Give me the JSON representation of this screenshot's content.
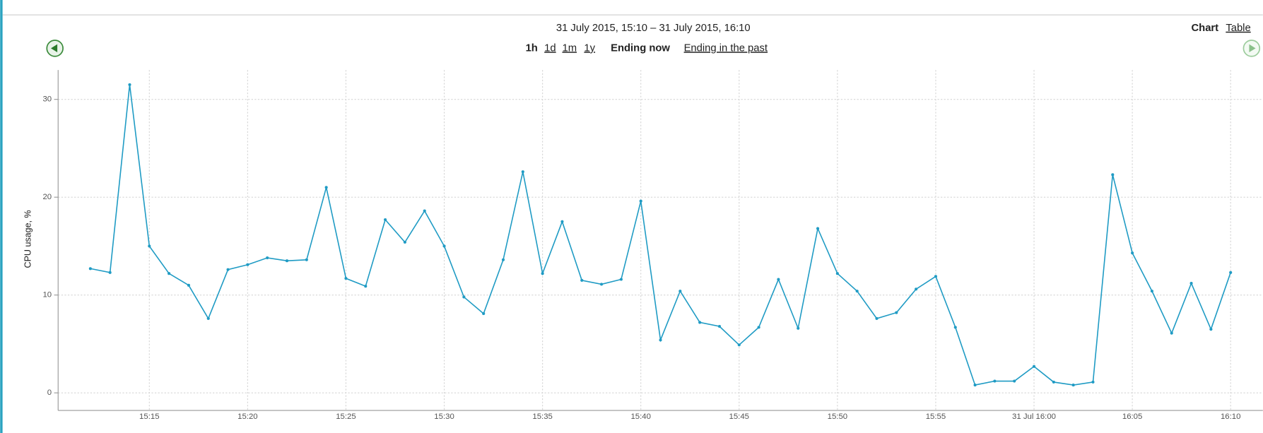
{
  "header": {
    "range": "31 July 2015, 15:10 – 31 July 2015, 16:10",
    "periods": [
      "1h",
      "1d",
      "1m",
      "1y"
    ],
    "ending_now": "Ending now",
    "ending_past": "Ending in the past",
    "views": [
      "Chart",
      "Table"
    ]
  },
  "chart_data": {
    "type": "line",
    "y_label": "CPU usage, %",
    "color": "#1f9bc4",
    "grid": true,
    "x": [
      "15:12",
      "15:13",
      "15:14",
      "15:15",
      "15:16",
      "15:17",
      "15:18",
      "15:19",
      "15:20",
      "15:21",
      "15:22",
      "15:23",
      "15:24",
      "15:25",
      "15:26",
      "15:27",
      "15:28",
      "15:29",
      "15:30",
      "15:31",
      "15:32",
      "15:33",
      "15:34",
      "15:35",
      "15:36",
      "15:37",
      "15:38",
      "15:39",
      "15:40",
      "15:41",
      "15:42",
      "15:43",
      "15:44",
      "15:45",
      "15:46",
      "15:47",
      "15:48",
      "15:49",
      "15:50",
      "15:51",
      "15:52",
      "15:53",
      "15:54",
      "15:55",
      "15:56",
      "15:57",
      "15:58",
      "15:59",
      "16:00",
      "16:01",
      "16:02",
      "16:03",
      "16:04",
      "16:05",
      "16:06",
      "16:07",
      "16:08",
      "16:09",
      "16:10"
    ],
    "values": [
      12.7,
      12.3,
      31.5,
      15.0,
      12.2,
      11.0,
      7.6,
      12.6,
      13.1,
      13.8,
      13.5,
      13.6,
      21.0,
      11.7,
      10.9,
      17.7,
      15.4,
      18.6,
      15.0,
      9.8,
      8.1,
      13.6,
      22.6,
      12.2,
      17.5,
      11.5,
      11.1,
      11.6,
      19.6,
      5.4,
      10.4,
      7.2,
      6.8,
      4.9,
      6.7,
      11.6,
      6.6,
      16.8,
      12.2,
      10.4,
      7.6,
      8.2,
      10.6,
      11.9,
      6.7,
      0.8,
      1.2,
      1.2,
      2.7,
      1.1,
      0.8,
      1.1,
      22.3,
      14.3,
      10.4,
      6.1,
      11.2,
      6.5,
      12.3
    ],
    "xlim": [
      "15:10",
      "16:12"
    ],
    "xticks": [
      "15:15",
      "15:20",
      "15:25",
      "15:30",
      "15:35",
      "15:40",
      "15:45",
      "15:50",
      "15:55",
      {
        "value": "16:00",
        "label": "31 Jul 16:00"
      },
      "16:05",
      "16:10"
    ],
    "ylim": [
      -1.8,
      33
    ],
    "yticks": [
      0,
      10,
      20,
      30
    ]
  }
}
